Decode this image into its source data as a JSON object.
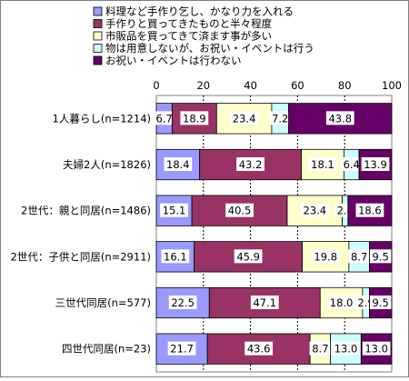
{
  "chart_data": {
    "type": "bar",
    "orientation": "horizontal",
    "stacked": true,
    "xlim": [
      0,
      100
    ],
    "x_ticks": [
      "0",
      "20",
      "40",
      "60",
      "80",
      "100"
    ],
    "grid": true,
    "legend_position": "top",
    "categories": [
      "1人暮らし(n=1214)",
      "夫婦2人(n=1826)",
      "2世代：親と同居(n=1486)",
      "2世代：子供と同居(n=2911)",
      "三世代同居(n=577)",
      "四世代同居(n=23)"
    ],
    "series": [
      {
        "name": "料理など手作り乞し、かなり力を入れる",
        "color": "#9999ff",
        "values": [
          6.7,
          18.4,
          15.1,
          16.1,
          22.5,
          21.7
        ]
      },
      {
        "name": "手作りと買ってきたものと半々程度",
        "color": "#993366",
        "values": [
          18.9,
          43.2,
          40.5,
          45.9,
          47.1,
          43.6
        ]
      },
      {
        "name": "市販品を買ってきて済ます事が多い",
        "color": "#ffffcc",
        "values": [
          23.4,
          18.1,
          23.4,
          19.8,
          18.0,
          8.7
        ]
      },
      {
        "name": "物は用意しないが、お祝い・イベントは行う",
        "color": "#ccffff",
        "values": [
          7.2,
          6.4,
          2.4,
          8.7,
          2.9,
          13.0
        ]
      },
      {
        "name": "お祝い・イベントは行わない",
        "color": "#660066",
        "values": [
          43.8,
          13.9,
          18.6,
          9.5,
          9.5,
          13.0
        ]
      }
    ]
  }
}
